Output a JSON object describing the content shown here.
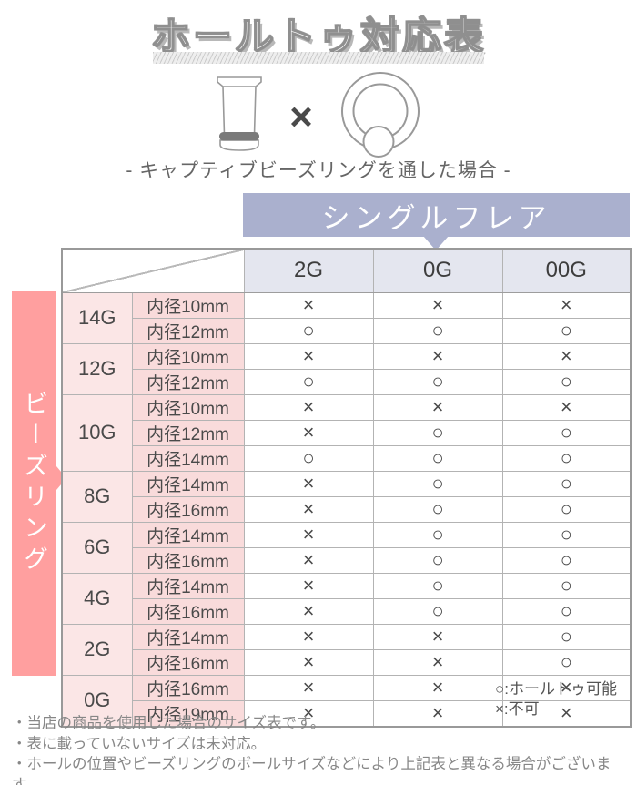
{
  "page": {
    "title": "ホールトゥ対応表",
    "subtitle": "- キャプティブビーズリングを通した場合 -",
    "cross_symbol": "×"
  },
  "chart_data": {
    "type": "table",
    "title": "ホールトゥ対応表",
    "condition": "キャプティブビーズリングを通した場合",
    "column_group_label": "シングルフレア",
    "row_group_label": "ビーズリング",
    "columns": [
      "2G",
      "0G",
      "00G"
    ],
    "groups": [
      {
        "gauge": "14G",
        "rows": [
          {
            "size": "内径10mm",
            "marks": [
              "×",
              "×",
              "×"
            ]
          },
          {
            "size": "内径12mm",
            "marks": [
              "○",
              "○",
              "○"
            ]
          }
        ]
      },
      {
        "gauge": "12G",
        "rows": [
          {
            "size": "内径10mm",
            "marks": [
              "×",
              "×",
              "×"
            ]
          },
          {
            "size": "内径12mm",
            "marks": [
              "○",
              "○",
              "○"
            ]
          }
        ]
      },
      {
        "gauge": "10G",
        "rows": [
          {
            "size": "内径10mm",
            "marks": [
              "×",
              "×",
              "×"
            ]
          },
          {
            "size": "内径12mm",
            "marks": [
              "×",
              "○",
              "○"
            ]
          },
          {
            "size": "内径14mm",
            "marks": [
              "○",
              "○",
              "○"
            ]
          }
        ]
      },
      {
        "gauge": "8G",
        "rows": [
          {
            "size": "内径14mm",
            "marks": [
              "×",
              "○",
              "○"
            ]
          },
          {
            "size": "内径16mm",
            "marks": [
              "×",
              "○",
              "○"
            ]
          }
        ]
      },
      {
        "gauge": "6G",
        "rows": [
          {
            "size": "内径14mm",
            "marks": [
              "×",
              "○",
              "○"
            ]
          },
          {
            "size": "内径16mm",
            "marks": [
              "×",
              "○",
              "○"
            ]
          }
        ]
      },
      {
        "gauge": "4G",
        "rows": [
          {
            "size": "内径14mm",
            "marks": [
              "×",
              "○",
              "○"
            ]
          },
          {
            "size": "内径16mm",
            "marks": [
              "×",
              "○",
              "○"
            ]
          }
        ]
      },
      {
        "gauge": "2G",
        "rows": [
          {
            "size": "内径14mm",
            "marks": [
              "×",
              "×",
              "○"
            ]
          },
          {
            "size": "内径16mm",
            "marks": [
              "×",
              "×",
              "○"
            ]
          }
        ]
      },
      {
        "gauge": "0G",
        "rows": [
          {
            "size": "内径16mm",
            "marks": [
              "×",
              "×",
              "×"
            ]
          },
          {
            "size": "内径19mm",
            "marks": [
              "×",
              "×",
              "×"
            ]
          }
        ]
      }
    ],
    "legend": {
      "possible": "○:ホールトゥ可能",
      "impossible": "×:不可"
    }
  },
  "notes": [
    "・当店の商品を使用した場合のサイズ表です。",
    "・表に載っていないサイズは未対応。",
    "・ホールの位置やビーズリングのボールサイズなどにより上記表と異なる場合がございます。"
  ],
  "colors": {
    "accent_pink": "#ff9f9f",
    "accent_lavender": "#aab0ce",
    "column_header_bg": "#e4e6ef",
    "gauge_cell_bg": "#fbe6e6",
    "size_cell_bg": "#f9dbdb",
    "mark_color": "#4a4a4a"
  }
}
